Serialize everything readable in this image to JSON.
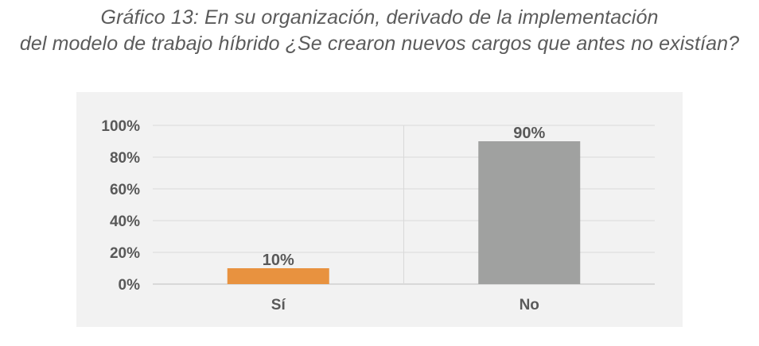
{
  "chart_data": {
    "type": "bar",
    "title_lines": [
      "Gráfico 13: En su organización, derivado de la implementación",
      "del modelo de trabajo híbrido ¿Se crearon nuevos cargos que antes no existían?"
    ],
    "categories": [
      "Sí",
      "No"
    ],
    "values": [
      10,
      90
    ],
    "data_labels": [
      "10%",
      "90%"
    ],
    "colors": [
      "#e8923f",
      "#a0a1a0"
    ],
    "y_ticks": [
      "0%",
      "20%",
      "40%",
      "60%",
      "80%",
      "100%"
    ],
    "ylim": [
      0,
      100
    ],
    "grid": true,
    "legend": "none",
    "xlabel": "",
    "ylabel": ""
  }
}
